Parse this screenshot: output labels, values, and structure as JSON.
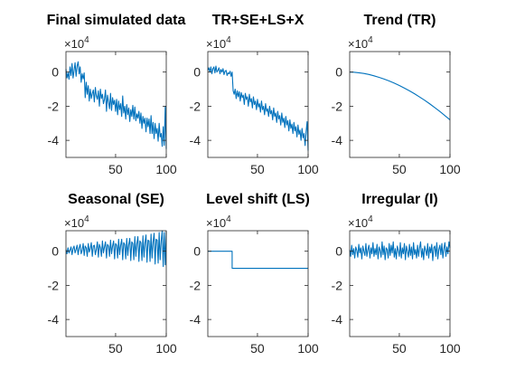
{
  "chart_data": [
    {
      "type": "line",
      "title": "Final simulated data",
      "xlim": [
        1,
        100
      ],
      "ylim": [
        -5,
        1.2
      ],
      "y_exponent": "×10",
      "y_exponent_power": "4",
      "xticks": [
        50,
        100
      ],
      "yticks": [
        0,
        -2,
        -4
      ],
      "xtick_labels": [
        "50",
        "100"
      ],
      "ytick_labels": [
        "0",
        "-2",
        "-4"
      ],
      "series": [
        {
          "color": "#0072BD",
          "x": [
            1,
            2,
            3,
            4,
            5,
            6,
            7,
            8,
            9,
            10,
            11,
            12,
            13,
            14,
            15,
            16,
            17,
            18,
            19,
            20,
            21,
            22,
            23,
            24,
            25,
            26,
            27,
            28,
            29,
            30,
            31,
            32,
            33,
            34,
            35,
            36,
            37,
            38,
            39,
            40,
            41,
            42,
            43,
            44,
            45,
            46,
            47,
            48,
            49,
            50,
            51,
            52,
            53,
            54,
            55,
            56,
            57,
            58,
            59,
            60,
            61,
            62,
            63,
            64,
            65,
            66,
            67,
            68,
            69,
            70,
            71,
            72,
            73,
            74,
            75,
            76,
            77,
            78,
            79,
            80,
            81,
            82,
            83,
            84,
            85,
            86,
            87,
            88,
            89,
            90,
            91,
            92,
            93,
            94,
            95,
            96,
            97,
            98,
            99,
            100
          ],
          "values": [
            0.18,
            -0.35,
            -0.05,
            -0.42,
            0.3,
            -0.2,
            0.5,
            -0.35,
            0.1,
            0.55,
            -0.25,
            0.35,
            0.6,
            -0.1,
            0.3,
            -0.6,
            -0.1,
            -0.4,
            -0.05,
            -1.5,
            -0.6,
            -1.3,
            -0.8,
            -1.7,
            -1.0,
            -1.55,
            -1.25,
            -1.05,
            -1.75,
            -0.9,
            -1.4,
            -1.6,
            -1.1,
            -2.0,
            -1.0,
            -1.55,
            -1.3,
            -1.85,
            -1.6,
            -1.05,
            -2.3,
            -1.35,
            -1.75,
            -2.15,
            -1.25,
            -2.25,
            -1.5,
            -1.9,
            -1.65,
            -2.3,
            -1.6,
            -2.5,
            -1.7,
            -2.2,
            -1.85,
            -2.6,
            -1.4,
            -2.4,
            -2.0,
            -2.75,
            -1.9,
            -2.5,
            -2.1,
            -2.9,
            -2.2,
            -2.6,
            -1.95,
            -2.75,
            -2.05,
            -2.85,
            -2.45,
            -2.7,
            -2.3,
            -3.0,
            -2.4,
            -3.3,
            -2.6,
            -3.0,
            -2.7,
            -3.5,
            -2.7,
            -3.2,
            -2.75,
            -3.6,
            -2.55,
            -3.6,
            -2.95,
            -3.9,
            -3.0,
            -3.6,
            -3.3,
            -4.05,
            -3.0,
            -3.8,
            -3.6,
            -4.35,
            -3.2,
            -4.3,
            -2.0,
            -4.5
          ]
        }
      ]
    },
    {
      "type": "line",
      "title": "TR+SE+LS+X",
      "xlim": [
        1,
        100
      ],
      "ylim": [
        -5,
        1.2
      ],
      "y_exponent": "×10",
      "y_exponent_power": "4",
      "xticks": [
        50,
        100
      ],
      "yticks": [
        0,
        -2,
        -4
      ],
      "xtick_labels": [
        "50",
        "100"
      ],
      "ytick_labels": [
        "0",
        "-2",
        "-4"
      ],
      "series": [
        {
          "color": "#0072BD",
          "x": [
            1,
            2,
            3,
            4,
            5,
            6,
            7,
            8,
            9,
            10,
            11,
            12,
            13,
            14,
            15,
            16,
            17,
            18,
            19,
            20,
            21,
            22,
            23,
            24,
            25,
            26,
            27,
            28,
            29,
            30,
            31,
            32,
            33,
            34,
            35,
            36,
            37,
            38,
            39,
            40,
            41,
            42,
            43,
            44,
            45,
            46,
            47,
            48,
            49,
            50,
            51,
            52,
            53,
            54,
            55,
            56,
            57,
            58,
            59,
            60,
            61,
            62,
            63,
            64,
            65,
            66,
            67,
            68,
            69,
            70,
            71,
            72,
            73,
            74,
            75,
            76,
            77,
            78,
            79,
            80,
            81,
            82,
            83,
            84,
            85,
            86,
            87,
            88,
            89,
            90,
            91,
            92,
            93,
            94,
            95,
            96,
            97,
            98,
            99,
            100
          ],
          "values": [
            0.1,
            0.25,
            0.0,
            0.3,
            -0.1,
            0.2,
            0.3,
            -0.05,
            0.35,
            0.0,
            0.1,
            0.25,
            -0.1,
            0.15,
            0.0,
            0.2,
            -0.15,
            0.05,
            0.1,
            -0.2,
            -0.05,
            -0.1,
            0.05,
            -0.25,
            0.0,
            -1.1,
            -1.3,
            -1.0,
            -1.55,
            -1.1,
            -1.45,
            -1.15,
            -1.7,
            -1.2,
            -1.5,
            -1.35,
            -1.9,
            -1.25,
            -1.6,
            -1.45,
            -2.0,
            -1.3,
            -1.75,
            -1.55,
            -2.1,
            -1.45,
            -1.9,
            -1.7,
            -2.2,
            -1.6,
            -2.05,
            -1.85,
            -2.35,
            -1.7,
            -2.2,
            -2.0,
            -2.5,
            -1.85,
            -2.3,
            -2.15,
            -2.6,
            -2.0,
            -2.45,
            -2.25,
            -2.8,
            -2.1,
            -2.6,
            -2.4,
            -2.95,
            -2.3,
            -2.75,
            -2.55,
            -3.1,
            -2.4,
            -2.95,
            -2.7,
            -3.25,
            -2.6,
            -3.1,
            -2.85,
            -3.45,
            -2.8,
            -3.3,
            -3.05,
            -3.6,
            -2.95,
            -3.45,
            -3.2,
            -3.8,
            -3.1,
            -3.65,
            -3.4,
            -4.0,
            -3.3,
            -3.85,
            -3.6,
            -4.3,
            -3.5,
            -2.9,
            -4.6
          ]
        }
      ]
    },
    {
      "type": "line",
      "title": "Trend (TR)",
      "xlim": [
        1,
        100
      ],
      "ylim": [
        -5,
        1.2
      ],
      "y_exponent": "×10",
      "y_exponent_power": "4",
      "xticks": [
        50,
        100
      ],
      "yticks": [
        0,
        -2,
        -4
      ],
      "xtick_labels": [
        "50",
        "100"
      ],
      "ytick_labels": [
        "0",
        "-2",
        "-4"
      ],
      "series": [
        {
          "color": "#0072BD",
          "x": [
            1,
            5,
            10,
            15,
            20,
            25,
            30,
            35,
            40,
            45,
            50,
            55,
            60,
            65,
            70,
            75,
            80,
            85,
            90,
            95,
            100
          ],
          "values": [
            0.0,
            -0.01,
            -0.04,
            -0.08,
            -0.14,
            -0.22,
            -0.31,
            -0.41,
            -0.52,
            -0.65,
            -0.79,
            -0.94,
            -1.1,
            -1.27,
            -1.46,
            -1.65,
            -1.86,
            -2.08,
            -2.31,
            -2.55,
            -2.8
          ]
        }
      ]
    },
    {
      "type": "line",
      "title": "Seasonal (SE)",
      "xlim": [
        1,
        100
      ],
      "ylim": [
        -5,
        1.2
      ],
      "y_exponent": "×10",
      "y_exponent_power": "4",
      "xticks": [
        50,
        100
      ],
      "yticks": [
        0,
        -2,
        -4
      ],
      "xtick_labels": [
        "50",
        "100"
      ],
      "ytick_labels": [
        "0",
        "-2",
        "-4"
      ],
      "series": [
        {
          "color": "#0072BD",
          "x": [
            1,
            2,
            3,
            4,
            5,
            6,
            7,
            8,
            9,
            10,
            11,
            12,
            13,
            14,
            15,
            16,
            17,
            18,
            19,
            20,
            21,
            22,
            23,
            24,
            25,
            26,
            27,
            28,
            29,
            30,
            31,
            32,
            33,
            34,
            35,
            36,
            37,
            38,
            39,
            40,
            41,
            42,
            43,
            44,
            45,
            46,
            47,
            48,
            49,
            50,
            51,
            52,
            53,
            54,
            55,
            56,
            57,
            58,
            59,
            60,
            61,
            62,
            63,
            64,
            65,
            66,
            67,
            68,
            69,
            70,
            71,
            72,
            73,
            74,
            75,
            76,
            77,
            78,
            79,
            80,
            81,
            82,
            83,
            84,
            85,
            86,
            87,
            88,
            89,
            90,
            91,
            92,
            93,
            94,
            95,
            96,
            97,
            98,
            99,
            100
          ],
          "values": [
            0.1,
            -0.15,
            0.2,
            -0.1,
            0.05,
            0.25,
            -0.2,
            0.15,
            0.3,
            -0.1,
            0.1,
            0.35,
            -0.2,
            0.2,
            0.4,
            -0.15,
            0.05,
            0.45,
            -0.25,
            0.3,
            0.2,
            -0.3,
            0.45,
            -0.05,
            0.15,
            0.5,
            -0.3,
            0.3,
            0.35,
            -0.2,
            0.1,
            0.55,
            -0.35,
            0.4,
            0.2,
            -0.3,
            0.6,
            -0.1,
            0.25,
            0.55,
            -0.4,
            0.4,
            0.3,
            -0.3,
            0.65,
            -0.15,
            0.3,
            0.6,
            -0.45,
            0.45,
            0.35,
            -0.4,
            0.7,
            -0.2,
            0.35,
            0.7,
            -0.5,
            0.5,
            0.4,
            -0.45,
            0.75,
            -0.25,
            0.4,
            0.75,
            -0.55,
            0.55,
            0.45,
            -0.5,
            0.85,
            -0.3,
            0.45,
            0.85,
            -0.6,
            0.6,
            0.5,
            -0.55,
            0.9,
            -0.35,
            0.5,
            0.95,
            -0.65,
            0.65,
            0.6,
            -0.6,
            1.0,
            -0.4,
            0.55,
            1.05,
            -0.75,
            0.7,
            0.65,
            -0.7,
            1.1,
            -0.5,
            0.6,
            1.2,
            -0.9,
            1.1,
            -0.8,
            1.15
          ]
        }
      ]
    },
    {
      "type": "line",
      "title": "Level shift (LS)",
      "xlim": [
        1,
        100
      ],
      "ylim": [
        -5,
        1.2
      ],
      "y_exponent": "×10",
      "y_exponent_power": "4",
      "xticks": [
        50,
        100
      ],
      "yticks": [
        0,
        -2,
        -4
      ],
      "xtick_labels": [
        "50",
        "100"
      ],
      "ytick_labels": [
        "0",
        "-2",
        "-4"
      ],
      "series": [
        {
          "color": "#0072BD",
          "x": [
            1,
            25,
            25.01,
            100
          ],
          "values": [
            0,
            0,
            -1,
            -1
          ]
        }
      ]
    },
    {
      "type": "line",
      "title": "Irregular (I)",
      "xlim": [
        1,
        100
      ],
      "ylim": [
        -5,
        1.2
      ],
      "y_exponent": "×10",
      "y_exponent_power": "4",
      "xticks": [
        50,
        100
      ],
      "yticks": [
        0,
        -2,
        -4
      ],
      "xtick_labels": [
        "50",
        "100"
      ],
      "ytick_labels": [
        "0",
        "-2",
        "-4"
      ],
      "series": [
        {
          "color": "#0072BD",
          "x": [
            1,
            2,
            3,
            4,
            5,
            6,
            7,
            8,
            9,
            10,
            11,
            12,
            13,
            14,
            15,
            16,
            17,
            18,
            19,
            20,
            21,
            22,
            23,
            24,
            25,
            26,
            27,
            28,
            29,
            30,
            31,
            32,
            33,
            34,
            35,
            36,
            37,
            38,
            39,
            40,
            41,
            42,
            43,
            44,
            45,
            46,
            47,
            48,
            49,
            50,
            51,
            52,
            53,
            54,
            55,
            56,
            57,
            58,
            59,
            60,
            61,
            62,
            63,
            64,
            65,
            66,
            67,
            68,
            69,
            70,
            71,
            72,
            73,
            74,
            75,
            76,
            77,
            78,
            79,
            80,
            81,
            82,
            83,
            84,
            85,
            86,
            87,
            88,
            89,
            90,
            91,
            92,
            93,
            94,
            95,
            96,
            97,
            98,
            99,
            100
          ],
          "values": [
            0.1,
            -0.3,
            0.35,
            -0.2,
            0.15,
            -0.4,
            0.25,
            0.05,
            -0.35,
            0.4,
            -0.1,
            0.2,
            -0.45,
            0.3,
            0.0,
            -0.25,
            0.45,
            -0.3,
            0.1,
            0.35,
            -0.4,
            0.2,
            -0.15,
            0.5,
            -0.3,
            0.15,
            -0.2,
            0.4,
            -0.45,
            0.25,
            0.05,
            -0.35,
            0.55,
            -0.2,
            0.3,
            -0.5,
            0.2,
            0.1,
            -0.4,
            0.45,
            -0.25,
            0.35,
            -0.1,
            0.55,
            -0.35,
            0.15,
            -0.45,
            0.3,
            0.05,
            -0.3,
            0.5,
            -0.4,
            0.2,
            -0.15,
            0.45,
            -0.5,
            0.3,
            0.0,
            -0.35,
            0.4,
            -0.25,
            0.25,
            -0.45,
            0.5,
            -0.2,
            0.1,
            -0.4,
            0.35,
            -0.3,
            0.2,
            0.55,
            -0.35,
            0.15,
            -0.5,
            0.3,
            0.05,
            -0.25,
            0.45,
            -0.4,
            0.25,
            -0.1,
            0.4,
            -0.55,
            0.2,
            0.3,
            -0.3,
            0.5,
            -0.45,
            0.1,
            0.35,
            -0.2,
            0.45,
            -0.4,
            0.15,
            0.5,
            -0.3,
            0.25,
            -0.15,
            0.55,
            0.2
          ]
        }
      ]
    }
  ]
}
